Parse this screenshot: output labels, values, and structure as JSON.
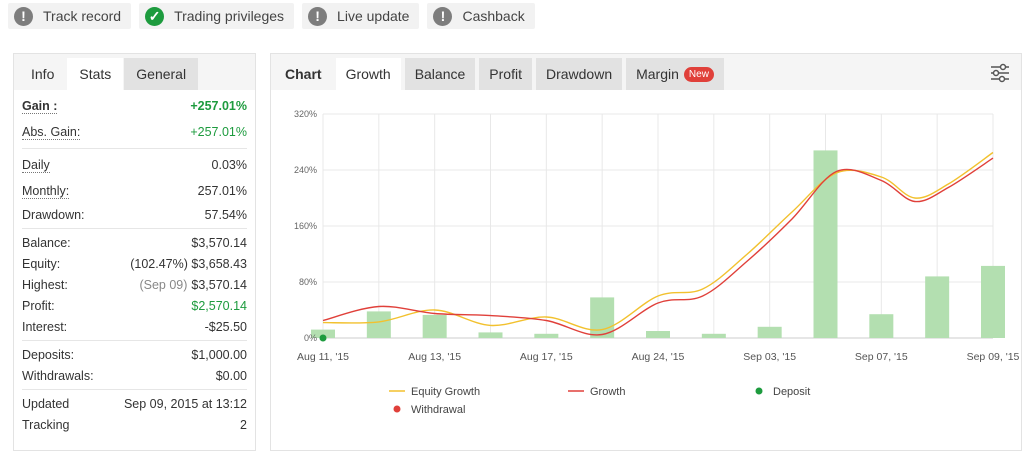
{
  "badges": [
    {
      "label": "Track record",
      "icon": "exclamation-icon",
      "state": "grey"
    },
    {
      "label": "Trading privileges",
      "icon": "check-icon",
      "state": "green"
    },
    {
      "label": "Live update",
      "icon": "exclamation-icon",
      "state": "grey"
    },
    {
      "label": "Cashback",
      "icon": "exclamation-icon",
      "state": "grey"
    }
  ],
  "left_tabs": {
    "info": "Info",
    "stats": "Stats",
    "general": "General"
  },
  "stats": {
    "gain_label": "Gain :",
    "gain_value": "+257.01%",
    "abs_gain_label": "Abs. Gain:",
    "abs_gain_value": "+257.01%",
    "daily_label": "Daily",
    "daily_value": "0.03%",
    "monthly_label": "Monthly:",
    "monthly_value": "257.01%",
    "drawdown_label": "Drawdown:",
    "drawdown_value": "57.54%",
    "balance_label": "Balance:",
    "balance_value": "$3,570.14",
    "equity_label": "Equity:",
    "equity_note": "(102.47%)",
    "equity_value": "$3,658.43",
    "highest_label": "Highest:",
    "highest_note": "(Sep 09)",
    "highest_value": "$3,570.14",
    "profit_label": "Profit:",
    "profit_value": "$2,570.14",
    "interest_label": "Interest:",
    "interest_value": "-$25.50",
    "deposits_label": "Deposits:",
    "deposits_value": "$1,000.00",
    "withdrawals_label": "Withdrawals:",
    "withdrawals_value": "$0.00",
    "updated_label": "Updated",
    "updated_value": "Sep 09, 2015 at 13:12",
    "tracking_label": "Tracking",
    "tracking_value": "2"
  },
  "chart_tabs": {
    "chart": "Chart",
    "growth": "Growth",
    "balance": "Balance",
    "profit": "Profit",
    "drawdown": "Drawdown",
    "margin": "Margin",
    "new_badge": "New"
  },
  "colors": {
    "equity": "#f2c12e",
    "growth": "#e0403a",
    "deposit": "#1d9b3e",
    "withdrawal": "#e0403a",
    "bars": "#b3dfb0",
    "accent_green": "#1d9b3e"
  },
  "chart_data": {
    "type": "line",
    "x_ticks": [
      "Aug 11, '15",
      "Aug 13, '15",
      "Aug 17, '15",
      "Aug 24, '15",
      "Sep 03, '15",
      "Sep 07, '15",
      "Sep 09, '15"
    ],
    "y_ticks": [
      "0%",
      "80%",
      "160%",
      "240%",
      "320%"
    ],
    "ylim": [
      0,
      320
    ],
    "bars": [
      12,
      38,
      33,
      8,
      6,
      58,
      10,
      6,
      16,
      268,
      34,
      88,
      103
    ],
    "series": [
      {
        "name": "Equity Growth",
        "x": [
          0,
          0.5,
          1,
          1.5,
          2,
          2.5,
          3,
          3.4,
          3.8,
          4.2,
          4.6,
          5,
          5.3,
          5.6,
          6
        ],
        "values": [
          22,
          23,
          40,
          18,
          30,
          12,
          60,
          70,
          120,
          180,
          236,
          230,
          200,
          220,
          265
        ]
      },
      {
        "name": "Growth",
        "x": [
          0,
          0.5,
          1,
          1.5,
          2,
          2.5,
          3,
          3.4,
          3.8,
          4.2,
          4.6,
          5,
          5.3,
          5.6,
          6
        ],
        "values": [
          25,
          45,
          35,
          32,
          25,
          5,
          50,
          60,
          110,
          170,
          238,
          225,
          195,
          215,
          257
        ]
      }
    ],
    "legend": [
      "Equity Growth",
      "Growth",
      "Deposit",
      "Withdrawal"
    ],
    "deposit_points": [
      {
        "x": 0,
        "y": 0
      }
    ]
  }
}
